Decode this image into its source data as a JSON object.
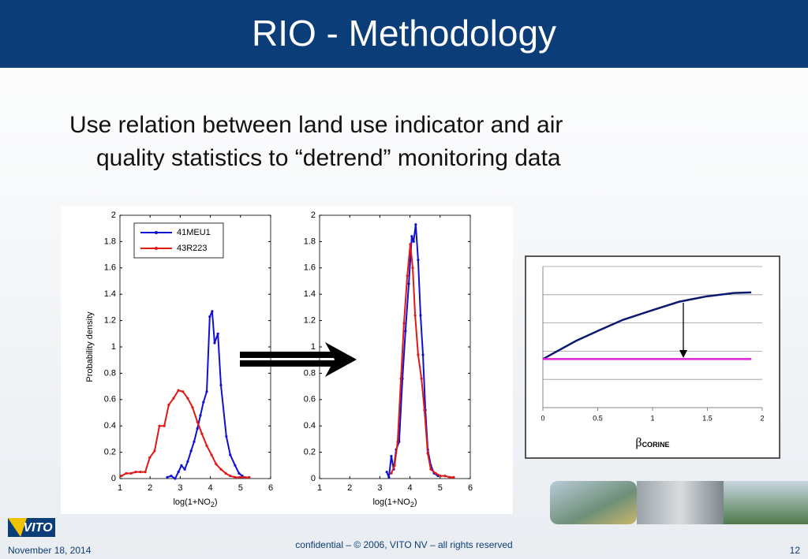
{
  "header": {
    "title": "RIO - Methodology"
  },
  "bullet": {
    "line1": "Use relation between land use indicator and air",
    "line2": "quality statistics to “detrend” monitoring data"
  },
  "footer": {
    "logo": "VITO",
    "date": "November 18, 2014",
    "notice": "confidential – © 2006, VITO NV – all rights reserved",
    "page": "12"
  },
  "chart_data": [
    {
      "type": "line",
      "ylabel": "Probability density",
      "xlabel": {
        "main": "log(1+NO",
        "sub": "2",
        "tail": ")"
      },
      "xlim": [
        1,
        6
      ],
      "xticks": [
        1,
        2,
        3,
        4,
        5,
        6
      ],
      "ylim": [
        0,
        2
      ],
      "yticks": [
        0,
        0.2,
        0.4,
        0.6,
        0.8,
        1,
        1.2,
        1.4,
        1.6,
        1.8,
        2
      ],
      "markers": true,
      "legend": "upper left",
      "series": [
        {
          "name": "41MEU1",
          "color": "#1010d0",
          "x": [
            2.57,
            2.7,
            2.83,
            2.94,
            3.04,
            3.15,
            3.25,
            3.36,
            3.46,
            3.57,
            3.67,
            3.77,
            3.88,
            3.98,
            4.06,
            4.14,
            4.25,
            4.35,
            4.53,
            4.66,
            4.82,
            4.95,
            5.06
          ],
          "values": [
            0.01,
            0.02,
            0,
            0.05,
            0.1,
            0.07,
            0.13,
            0.21,
            0.28,
            0.38,
            0.48,
            0.58,
            0.66,
            1.23,
            1.27,
            1.03,
            1.1,
            0.71,
            0.32,
            0.18,
            0.1,
            0.04,
            0.02
          ]
        },
        {
          "name": "43R223",
          "color": "#e01818",
          "x": [
            1.05,
            1.21,
            1.37,
            1.52,
            1.68,
            1.84,
            1.99,
            2.15,
            2.31,
            2.47,
            2.62,
            2.78,
            2.94,
            3.09,
            3.25,
            3.41,
            3.57,
            3.72,
            3.88,
            4.04,
            4.19,
            4.35,
            4.51,
            4.66,
            4.82,
            4.98,
            5.14,
            5.29
          ],
          "values": [
            0.02,
            0.04,
            0.04,
            0.05,
            0.05,
            0.05,
            0.16,
            0.21,
            0.4,
            0.4,
            0.56,
            0.61,
            0.67,
            0.66,
            0.61,
            0.54,
            0.43,
            0.34,
            0.25,
            0.18,
            0.11,
            0.07,
            0.04,
            0.02,
            0.01,
            0.01,
            0.01,
            0.01
          ]
        }
      ]
    },
    {
      "type": "line",
      "xlabel": {
        "main": "log(1+NO",
        "sub": "2",
        "tail": ")"
      },
      "xlim": [
        1,
        6
      ],
      "xticks": [
        1,
        2,
        3,
        4,
        5,
        6
      ],
      "ylim": [
        0,
        2
      ],
      "yticks": [
        0,
        0.2,
        0.4,
        0.6,
        0.8,
        1,
        1.2,
        1.4,
        1.6,
        1.8,
        2
      ],
      "markers": true,
      "series": [
        {
          "color": "#1010d0",
          "x": [
            3.23,
            3.3,
            3.38,
            3.46,
            3.54,
            3.64,
            3.75,
            3.85,
            3.96,
            4.06,
            4.12,
            4.19,
            4.27,
            4.35,
            4.43,
            4.51,
            4.59,
            4.69,
            4.8,
            4.93
          ],
          "values": [
            0.05,
            0.01,
            0.17,
            0.07,
            0.22,
            0.28,
            0.76,
            1.12,
            1.48,
            1.84,
            1.8,
            1.93,
            1.66,
            1.24,
            0.94,
            0.52,
            0.22,
            0.1,
            0.04,
            0.02
          ]
        },
        {
          "color": "#e01818",
          "x": [
            3.38,
            3.49,
            3.59,
            3.7,
            3.8,
            3.91,
            4.01,
            4.09,
            4.17,
            4.27,
            4.38,
            4.48,
            4.59,
            4.69,
            4.85,
            5.01,
            5.16,
            5.32,
            5.45
          ],
          "values": [
            0.04,
            0.1,
            0.28,
            0.76,
            1.18,
            1.54,
            1.78,
            1.6,
            1.24,
            0.94,
            0.76,
            0.52,
            0.19,
            0.07,
            0.04,
            0.02,
            0.02,
            0.01,
            0.01
          ]
        }
      ]
    },
    {
      "type": "line",
      "xlabel": {
        "symbol": "β",
        "sub": "CORINE"
      },
      "xlim": [
        0,
        2
      ],
      "xticks": [
        0,
        0.5,
        1,
        1.5,
        2
      ],
      "ylim": [
        0,
        5
      ],
      "ygrid": [
        0,
        1,
        2,
        3,
        4,
        5
      ],
      "grid": true,
      "markers": false,
      "series": [
        {
          "color": "#0a1a6e",
          "x": [
            0,
            0.3,
            0.52,
            0.73,
            0.99,
            1.24,
            1.49,
            1.74,
            1.9
          ],
          "values": [
            1.72,
            2.36,
            2.75,
            3.11,
            3.44,
            3.75,
            3.94,
            4.06,
            4.08
          ]
        },
        {
          "color": "#e020e0",
          "x": [
            0,
            1.9
          ],
          "values": [
            1.72,
            1.72
          ]
        }
      ]
    }
  ]
}
